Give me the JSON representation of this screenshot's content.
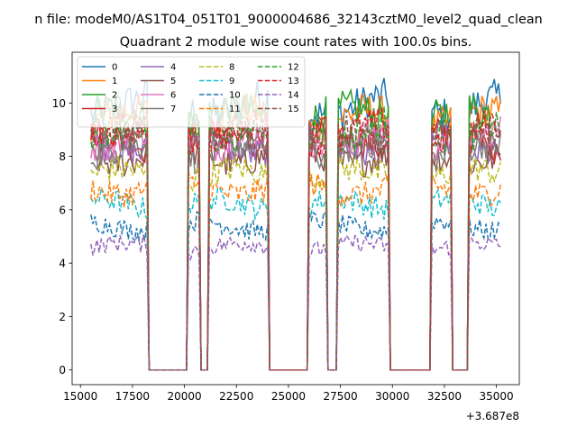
{
  "chart_data": {
    "type": "line",
    "suptitle": "n file: modeM0/AS1T04_051T01_9000004686_32143cztM0_level2_quad_clean",
    "title": "Quadrant 2 module wise count rates with 100.0s bins.",
    "xlabel": "",
    "ylabel": "",
    "x_offset_label": "+3.687e8",
    "xlim": [
      14600,
      36100
    ],
    "ylim": [
      -0.55,
      11.9
    ],
    "xticks": [
      15000,
      17500,
      20000,
      22500,
      25000,
      27500,
      30000,
      32500,
      35000
    ],
    "xtick_labels": [
      "15000",
      "17500",
      "20000",
      "22500",
      "25000",
      "27500",
      "30000",
      "32500",
      "35000"
    ],
    "yticks": [
      0,
      2,
      4,
      6,
      8,
      10
    ],
    "ytick_labels": [
      "0",
      "2",
      "4",
      "6",
      "8",
      "10"
    ],
    "grid": false,
    "legend_position": "top-left",
    "legend_columns": 4,
    "gap_intervals": [
      [
        18300,
        20100
      ],
      [
        20800,
        21100
      ],
      [
        24100,
        25900
      ],
      [
        26900,
        27300
      ],
      [
        29900,
        31800
      ],
      [
        32900,
        33600
      ]
    ],
    "series": [
      {
        "name": "0",
        "color": "#1f77b4",
        "dash": "solid",
        "level": 9.9
      },
      {
        "name": "1",
        "color": "#ff7f0e",
        "dash": "solid",
        "level": 9.4
      },
      {
        "name": "2",
        "color": "#2ca02c",
        "dash": "solid",
        "level": 9.5
      },
      {
        "name": "3",
        "color": "#d62728",
        "dash": "solid",
        "level": 8.6
      },
      {
        "name": "4",
        "color": "#9467bd",
        "dash": "solid",
        "level": 8.4
      },
      {
        "name": "5",
        "color": "#8c564b",
        "dash": "solid",
        "level": 8.0
      },
      {
        "name": "6",
        "color": "#e377c2",
        "dash": "solid",
        "level": 8.7
      },
      {
        "name": "7",
        "color": "#7f7f7f",
        "dash": "solid",
        "level": 8.2
      },
      {
        "name": "8",
        "color": "#bcbd22",
        "dash": "dashed",
        "level": 7.3
      },
      {
        "name": "9",
        "color": "#17becf",
        "dash": "dashed",
        "level": 6.2
      },
      {
        "name": "10",
        "color": "#1f77b4",
        "dash": "dashed",
        "level": 5.4
      },
      {
        "name": "11",
        "color": "#ff7f0e",
        "dash": "dashed",
        "level": 6.8
      },
      {
        "name": "12",
        "color": "#2ca02c",
        "dash": "dashed",
        "level": 9.0
      },
      {
        "name": "13",
        "color": "#d62728",
        "dash": "dashed",
        "level": 8.9
      },
      {
        "name": "14",
        "color": "#9467bd",
        "dash": "dashed",
        "level": 4.6
      },
      {
        "name": "15",
        "color": "#8c564b",
        "dash": "dashed",
        "level": 8.7
      }
    ]
  }
}
